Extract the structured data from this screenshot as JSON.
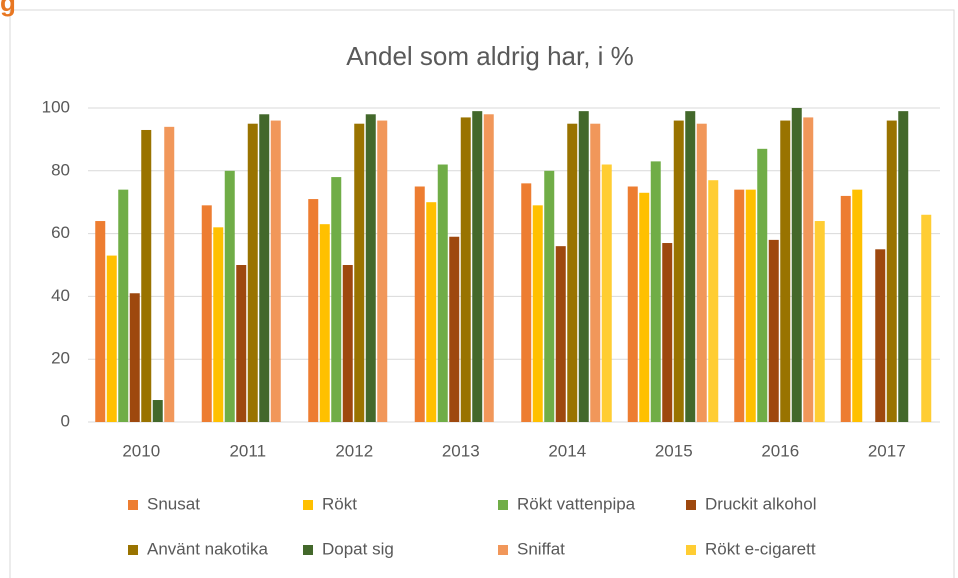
{
  "heading": "g",
  "chart_data": {
    "type": "bar",
    "title": "Andel som aldrig har, i %",
    "categories": [
      "2010",
      "2011",
      "2012",
      "2013",
      "2014",
      "2015",
      "2016",
      "2017"
    ],
    "series": [
      {
        "name": "Snusat",
        "color": "#ED7D31",
        "values": [
          64,
          69,
          71,
          75,
          76,
          75,
          74,
          72
        ]
      },
      {
        "name": "Rökt",
        "color": "#FFC000",
        "values": [
          53,
          62,
          63,
          70,
          69,
          73,
          74,
          74
        ]
      },
      {
        "name": "Rökt vattenpipa",
        "color": "#70AD47",
        "values": [
          74,
          80,
          78,
          82,
          80,
          83,
          87,
          null
        ]
      },
      {
        "name": "Druckit alkohol",
        "color": "#9E480E",
        "values": [
          41,
          50,
          50,
          59,
          56,
          57,
          58,
          55
        ]
      },
      {
        "name": "Använt nakotika",
        "color": "#997300",
        "values": [
          93,
          95,
          95,
          97,
          95,
          96,
          96,
          96
        ]
      },
      {
        "name": "Dopat sig",
        "color": "#43682B",
        "values": [
          7,
          98,
          98,
          99,
          99,
          99,
          100,
          99
        ]
      },
      {
        "name": "Sniffat",
        "color": "#F1975A",
        "values": [
          94,
          96,
          96,
          98,
          95,
          95,
          97,
          null
        ]
      },
      {
        "name": "Rökt e-cigarett",
        "color": "#FFCD33",
        "values": [
          null,
          null,
          null,
          null,
          82,
          77,
          64,
          66
        ]
      }
    ],
    "ylim": [
      0,
      100
    ],
    "yticks": [
      0,
      20,
      40,
      60,
      80,
      100
    ],
    "grid": true,
    "legend": "bottom"
  }
}
